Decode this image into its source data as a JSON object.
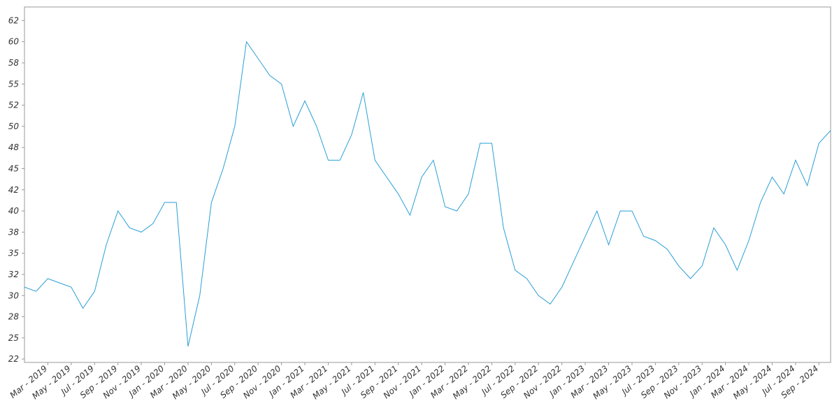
{
  "chart_data": {
    "type": "line",
    "x": [
      "2019-01",
      "2019-02",
      "2019-03",
      "2019-04",
      "2019-05",
      "2019-06",
      "2019-07",
      "2019-08",
      "2019-09",
      "2019-10",
      "2019-11",
      "2019-12",
      "2020-01",
      "2020-02",
      "2020-03",
      "2020-04",
      "2020-05",
      "2020-06",
      "2020-07",
      "2020-08",
      "2020-09",
      "2020-10",
      "2020-11",
      "2020-12",
      "2021-01",
      "2021-02",
      "2021-03",
      "2021-04",
      "2021-05",
      "2021-06",
      "2021-07",
      "2021-08",
      "2021-09",
      "2021-10",
      "2021-11",
      "2021-12",
      "2022-01",
      "2022-02",
      "2022-03",
      "2022-04",
      "2022-05",
      "2022-06",
      "2022-07",
      "2022-08",
      "2022-09",
      "2022-10",
      "2022-11",
      "2022-12",
      "2023-01",
      "2023-02",
      "2023-03",
      "2023-04",
      "2023-05",
      "2023-06",
      "2023-07",
      "2023-08",
      "2023-09",
      "2023-10",
      "2023-11",
      "2023-12",
      "2024-01",
      "2024-02",
      "2024-03",
      "2024-04",
      "2024-05",
      "2024-06",
      "2024-07",
      "2024-08",
      "2024-09",
      "2024-10"
    ],
    "series": [
      {
        "color": "#2a9fd6",
        "values": [
          31,
          30.5,
          32,
          31.5,
          31,
          28.5,
          30.5,
          36,
          40,
          38,
          37.5,
          38.5,
          41,
          41,
          24,
          30,
          41,
          45,
          50,
          60,
          58,
          56,
          55,
          50,
          53,
          50,
          46,
          46,
          49,
          54,
          46,
          44,
          42,
          39.5,
          44,
          46,
          40.5,
          40,
          42,
          48,
          48,
          38,
          33,
          32,
          30,
          29,
          31,
          34,
          37,
          40,
          36,
          40,
          40,
          37,
          36.5,
          35.5,
          33.5,
          32,
          33.5,
          38,
          36,
          33,
          36.5,
          41,
          44,
          42,
          46,
          43,
          48,
          49.5
        ]
      }
    ],
    "xlim": [
      "2019-01",
      "2024-10"
    ],
    "xticks": [
      {
        "value": "2019-03",
        "label": "Mar - 2019"
      },
      {
        "value": "2019-05",
        "label": "May - 2019"
      },
      {
        "value": "2019-07",
        "label": "Jul - 2019"
      },
      {
        "value": "2019-09",
        "label": "Sep - 2019"
      },
      {
        "value": "2019-11",
        "label": "Nov - 2019"
      },
      {
        "value": "2020-01",
        "label": "Jan - 2020"
      },
      {
        "value": "2020-03",
        "label": "Mar - 2020"
      },
      {
        "value": "2020-05",
        "label": "May - 2020"
      },
      {
        "value": "2020-07",
        "label": "Jul - 2020"
      },
      {
        "value": "2020-09",
        "label": "Sep - 2020"
      },
      {
        "value": "2020-11",
        "label": "Nov - 2020"
      },
      {
        "value": "2021-01",
        "label": "Jan - 2021"
      },
      {
        "value": "2021-03",
        "label": "Mar - 2021"
      },
      {
        "value": "2021-05",
        "label": "May - 2021"
      },
      {
        "value": "2021-07",
        "label": "Jul - 2021"
      },
      {
        "value": "2021-09",
        "label": "Sep - 2021"
      },
      {
        "value": "2021-11",
        "label": "Nov - 2021"
      },
      {
        "value": "2022-01",
        "label": "Jan - 2022"
      },
      {
        "value": "2022-03",
        "label": "Mar - 2022"
      },
      {
        "value": "2022-05",
        "label": "May - 2022"
      },
      {
        "value": "2022-07",
        "label": "Jul - 2022"
      },
      {
        "value": "2022-09",
        "label": "Sep - 2022"
      },
      {
        "value": "2022-11",
        "label": "Nov - 2022"
      },
      {
        "value": "2023-01",
        "label": "Jan - 2023"
      },
      {
        "value": "2023-03",
        "label": "Mar - 2023"
      },
      {
        "value": "2023-05",
        "label": "May - 2023"
      },
      {
        "value": "2023-07",
        "label": "Jul - 2023"
      },
      {
        "value": "2023-09",
        "label": "Sep - 2023"
      },
      {
        "value": "2023-11",
        "label": "Nov - 2023"
      },
      {
        "value": "2024-01",
        "label": "Jan - 2024"
      },
      {
        "value": "2024-03",
        "label": "Mar - 2024"
      },
      {
        "value": "2024-05",
        "label": "May - 2024"
      },
      {
        "value": "2024-07",
        "label": "Jul - 2024"
      },
      {
        "value": "2024-09",
        "label": "Sep - 2024"
      }
    ],
    "ylim": [
      22.1,
      64.1
    ],
    "yticks": [
      {
        "value": 22.5,
        "label": "22"
      },
      25,
      {
        "value": 27.5,
        "label": "28"
      },
      30,
      {
        "value": 32.5,
        "label": "32"
      },
      35,
      {
        "value": 37.5,
        "label": "38"
      },
      40,
      {
        "value": 42.5,
        "label": "42"
      },
      45,
      {
        "value": 47.5,
        "label": "48"
      },
      50,
      {
        "value": 52.5,
        "label": "52"
      },
      55,
      {
        "value": 57.5,
        "label": "58"
      },
      60,
      {
        "value": 62.5,
        "label": "62"
      }
    ]
  }
}
